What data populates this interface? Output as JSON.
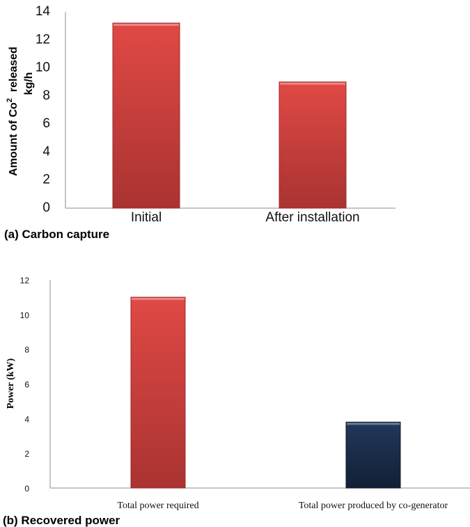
{
  "chart_data": [
    {
      "type": "bar",
      "caption": "(a) Carbon capture",
      "categories": [
        "Initial",
        "After installation"
      ],
      "values": [
        13.2,
        9.0
      ],
      "ylabel_line1": "Amount of Co",
      "ylabel_sup": "2",
      "ylabel_line1_end": "released",
      "ylabel_line2": "kg/h",
      "ylim": [
        0,
        14
      ],
      "yticks": [
        "0",
        "2",
        "4",
        "6",
        "8",
        "10",
        "12",
        "14"
      ],
      "bar_colors": [
        "#d9403c",
        "#d9403c"
      ],
      "grid": false
    },
    {
      "type": "bar",
      "caption": "(b) Recovered power",
      "categories": [
        "Total power required",
        "Total power produced by co-generator"
      ],
      "values": [
        11.0,
        3.8
      ],
      "ylabel": "Power (kW)",
      "ylim": [
        0,
        12
      ],
      "yticks": [
        "0",
        "2",
        "4",
        "6",
        "8",
        "10",
        "12"
      ],
      "bar_colors": [
        "#d9403c",
        "#1b2f4d"
      ],
      "grid": false
    }
  ]
}
